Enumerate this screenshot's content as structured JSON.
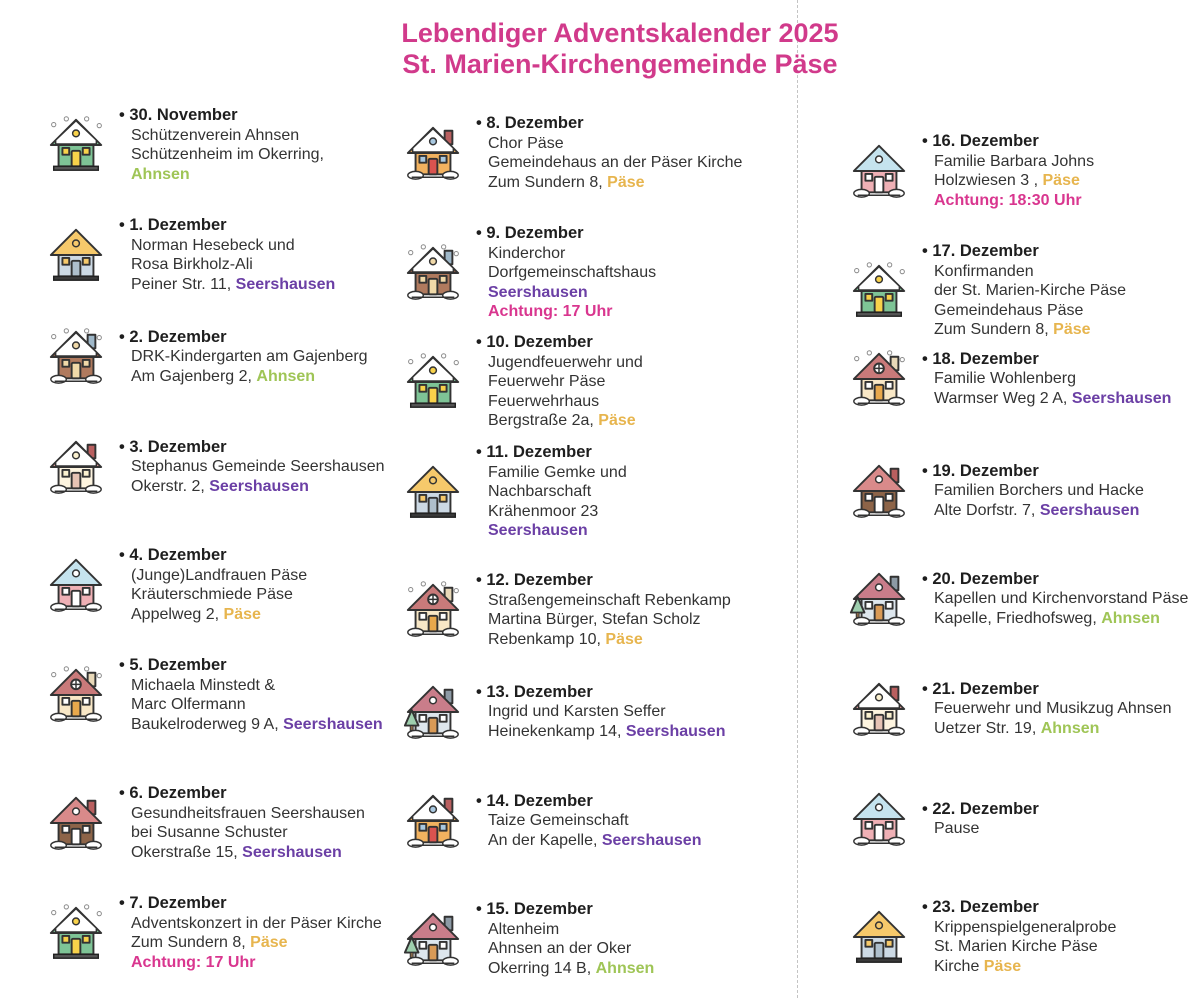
{
  "page": {
    "title_line1": "Lebendiger Adventskalender 2025",
    "title_line2": "St. Marien-Kirchengemeinde Päse"
  },
  "colors": {
    "title_pink": "#d13a8b",
    "warning_pink": "#d9368f",
    "location_green": "#9fc556",
    "location_purple": "#6b3fa5",
    "location_gold": "#e7b54e",
    "body_text": "#333333",
    "fold_line_gray": "#c4c4c4"
  },
  "columns": [
    {
      "entries": [
        {
          "date": "30. November",
          "icon": "green-snow-house-icon",
          "lines": [
            "Schützenverein Ahnsen",
            "Schützenheim im Okerring,",
            [
              {
                "t": "Ahnsen",
                "c": "green"
              }
            ]
          ]
        },
        {
          "date": "1. Dezember",
          "icon": "blue-yellow-roof-house-icon",
          "lines": [
            "Norman Hesebeck und",
            "Rosa Birkholz-Ali",
            [
              {
                "t": "Peiner Str. 11, "
              },
              {
                "t": "Seershausen",
                "c": "purple"
              }
            ]
          ]
        },
        {
          "date": "2. Dezember",
          "icon": "log-cabin-snow-icon",
          "lines": [
            "DRK-Kindergarten am Gajenberg",
            [
              {
                "t": "Am Gajenberg 2, "
              },
              {
                "t": "Ahnsen",
                "c": "green"
              }
            ]
          ]
        },
        {
          "date": "3. Dezember",
          "icon": "cream-red-roof-house-icon",
          "lines": [
            "Stephanus Gemeinde Seershausen",
            [
              {
                "t": "Okerstr. 2, "
              },
              {
                "t": "Seershausen",
                "c": "purple"
              }
            ]
          ]
        },
        {
          "date": "4. Dezember",
          "icon": "pink-blue-roof-house-icon",
          "lines": [
            "(Junge)Landfrauen Päse",
            "Kräuterschmiede Päse",
            [
              {
                "t": "Appelweg 2, "
              },
              {
                "t": "Päse",
                "c": "gold"
              }
            ]
          ]
        },
        {
          "date": "5. Dezember",
          "icon": "tan-round-window-house-icon",
          "lines": [
            "Michaela Minstedt &",
            "Marc Olfermann",
            [
              {
                "t": "Baukelroderweg 9 A, "
              },
              {
                "t": "Seershausen",
                "c": "purple"
              }
            ]
          ]
        },
        {
          "date": "6. Dezember",
          "icon": "brown-red-roof-house-icon",
          "lines": [
            "Gesundheitsfrauen Seershausen",
            "bei Susanne Schuster",
            [
              {
                "t": "Okerstraße 15, "
              },
              {
                "t": "Seershausen",
                "c": "purple"
              }
            ]
          ]
        },
        {
          "date": "7. Dezember",
          "icon": "green-snow-house-icon",
          "lines": [
            "Adventskonzert in der Päser Kirche",
            [
              {
                "t": "Zum Sundern 8, "
              },
              {
                "t": "Päse",
                "c": "gold"
              }
            ],
            [
              {
                "t": "Achtung: 17 Uhr",
                "c": "pink"
              }
            ]
          ]
        }
      ]
    },
    {
      "entries": [
        {
          "date": "8. Dezember",
          "icon": "orange-red-door-house-icon",
          "lines": [
            "Chor Päse",
            "Gemeindehaus an der Päser Kirche",
            [
              {
                "t": "Zum Sundern 8, "
              },
              {
                "t": "Päse",
                "c": "gold"
              }
            ]
          ]
        },
        {
          "date": "9. Dezember",
          "icon": "log-cabin-snow-icon",
          "lines": [
            "Kinderchor",
            "Dorfgemeinschaftshaus",
            [
              {
                "t": "Seershausen",
                "c": "purple"
              }
            ],
            [
              {
                "t": "Achtung: 17 Uhr",
                "c": "pink"
              }
            ]
          ]
        },
        {
          "date": "10. Dezember",
          "icon": "green-snow-house-icon",
          "lines": [
            "Jugendfeuerwehr und",
            "Feuerwehr Päse",
            "Feuerwehrhaus",
            [
              {
                "t": "Bergstraße 2a, "
              },
              {
                "t": "Päse",
                "c": "gold"
              }
            ]
          ]
        },
        {
          "date": "11. Dezember",
          "icon": "blue-yellow-roof-house-icon",
          "lines": [
            "Familie Gemke und",
            "Nachbarschaft",
            "Krähenmoor 23",
            [
              {
                "t": "Seershausen",
                "c": "purple"
              }
            ]
          ]
        },
        {
          "date": "12. Dezember",
          "icon": "tan-round-window-house-icon",
          "lines": [
            "Straßengemeinschaft Rebenkamp",
            "Martina Bürger, Stefan Scholz",
            [
              {
                "t": "Rebenkamp 10, "
              },
              {
                "t": "Päse",
                "c": "gold"
              }
            ]
          ]
        },
        {
          "date": "13. Dezember",
          "icon": "gray-tree-house-icon",
          "lines": [
            "Ingrid und Karsten Seffer",
            [
              {
                "t": "Heinekenkamp 14, "
              },
              {
                "t": "Seershausen",
                "c": "purple"
              }
            ]
          ]
        },
        {
          "date": "14. Dezember",
          "icon": "orange-red-door-house-icon",
          "lines": [
            "Taize Gemeinschaft",
            [
              {
                "t": "An der Kapelle, "
              },
              {
                "t": "Seershausen",
                "c": "purple"
              }
            ]
          ]
        },
        {
          "date": "15. Dezember",
          "icon": "gray-tree-house-icon",
          "lines": [
            "Altenheim",
            "Ahnsen an der Oker",
            [
              {
                "t": "Okerring 14 B, "
              },
              {
                "t": "Ahnsen",
                "c": "green"
              }
            ]
          ]
        }
      ]
    },
    {
      "entries": [
        {
          "date": "16. Dezember",
          "icon": "pink-blue-roof-house-icon",
          "lines": [
            "Familie Barbara Johns",
            [
              {
                "t": "Holzwiesen 3 , "
              },
              {
                "t": "Päse",
                "c": "gold"
              }
            ],
            [
              {
                "t": "Achtung: 18:30 Uhr",
                "c": "pink"
              }
            ]
          ]
        },
        {
          "date": "17. Dezember",
          "icon": "green-snow-house-icon",
          "lines": [
            "Konfirmanden",
            "der St. Marien-Kirche Päse",
            "Gemeindehaus Päse",
            [
              {
                "t": "Zum Sundern 8, "
              },
              {
                "t": "Päse",
                "c": "gold"
              }
            ]
          ]
        },
        {
          "date": "18. Dezember",
          "icon": "tan-round-window-house-icon",
          "lines": [
            "Familie Wohlenberg",
            [
              {
                "t": "Warmser Weg 2 A, "
              },
              {
                "t": "Seershausen",
                "c": "purple"
              }
            ]
          ]
        },
        {
          "date": "19. Dezember",
          "icon": "brown-red-roof-house-icon",
          "lines": [
            "Familien Borchers und Hacke",
            [
              {
                "t": "Alte Dorfstr. 7, "
              },
              {
                "t": "Seershausen",
                "c": "purple"
              }
            ]
          ]
        },
        {
          "date": "20. Dezember",
          "icon": "gray-tree-house-icon",
          "lines": [
            "Kapellen und Kirchenvorstand Päse",
            [
              {
                "t": "Kapelle, Friedhofsweg, "
              },
              {
                "t": "Ahnsen",
                "c": "green"
              }
            ]
          ]
        },
        {
          "date": "21. Dezember",
          "icon": "cream-red-roof-house-icon",
          "lines": [
            "Feuerwehr und Musikzug Ahnsen",
            [
              {
                "t": "Uetzer Str. 19, "
              },
              {
                "t": "Ahnsen",
                "c": "green"
              }
            ]
          ]
        },
        {
          "date": "22. Dezember",
          "icon": "pink-blue-roof-house-icon",
          "lines": [
            "Pause"
          ]
        },
        {
          "date": "23. Dezember",
          "icon": "blue-yellow-roof-house-icon",
          "lines": [
            "Krippenspielgeneralprobe",
            "St. Marien Kirche Päse",
            [
              {
                "t": "Kirche "
              },
              {
                "t": "Päse",
                "c": "gold"
              }
            ]
          ]
        }
      ]
    }
  ]
}
